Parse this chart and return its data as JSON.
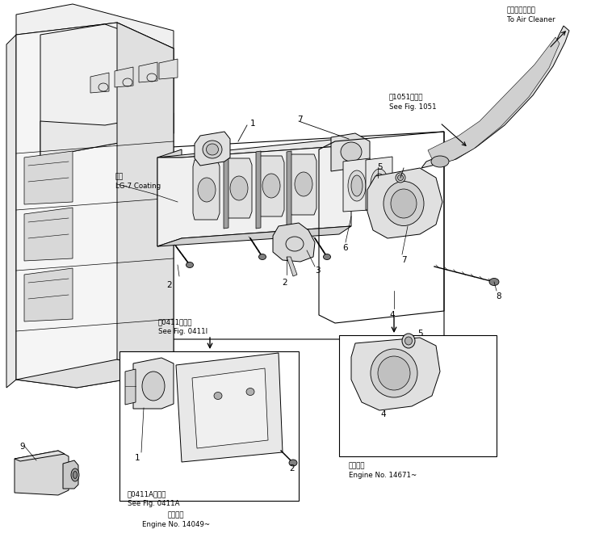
{
  "bg_color": "#ffffff",
  "line_color": "#000000",
  "annotations": {
    "top_right_jp": "エアクリーナヘ",
    "top_right_en": "To Air Cleaner",
    "fig1051_jp": "ㅔ1051図参照",
    "fig1051_en": "See Fig. 1051",
    "coating_jp": "塗布",
    "coating_en": "LG-7 Coating",
    "fig0411_jp": "ㅔ0411図参照",
    "fig0411_en": "See Fig. 0411I",
    "fig0411a_jp": "ㅔ0411A図参照",
    "fig0411a_en": "See Fig. 0411A",
    "engine_no_bottom_jp": "適用号機",
    "engine_no_bottom_en": "Engine No. 14049~",
    "engine_no_right_jp": "適用号機",
    "engine_no_right_en": "Engine No. 14671~"
  },
  "figsize": [
    7.32,
    6.76
  ],
  "dpi": 100
}
